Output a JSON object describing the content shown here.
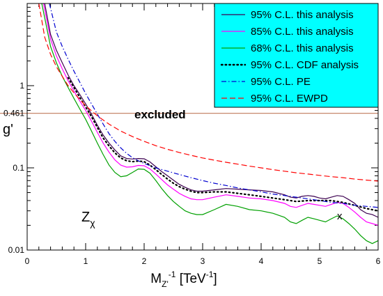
{
  "chart_data": {
    "type": "line",
    "x_scale": "linear",
    "y_scale": "log",
    "xlim": [
      0,
      6
    ],
    "ylim": [
      0.01,
      10
    ],
    "xticks": [
      "0",
      "1",
      "2",
      "3",
      "4",
      "5",
      "6"
    ],
    "yticks": [
      {
        "value": 0.01,
        "label": "0.01"
      },
      {
        "value": 0.1,
        "label": "0.1"
      },
      {
        "value": 0.461,
        "label": "0.461"
      },
      {
        "value": 1,
        "label": "1"
      }
    ],
    "xlabel": {
      "main": "M",
      "sub": "Z'",
      "sup": "-1",
      "unit": " [TeV",
      "unit_sup": "-1",
      "close": "]"
    },
    "ylabel": "g'",
    "annotations": {
      "excluded": "excluded",
      "model_main": "Z",
      "model_sub": "χ",
      "marker": "x"
    },
    "legend_position": "top-right",
    "legend_bg": "#00ffff",
    "reference_line": {
      "y": 0.461,
      "color": "#c0785a"
    },
    "series": [
      {
        "name": "95% C.L. this analysis",
        "color": "#3c0050",
        "dash": "solid",
        "points": [
          [
            0.3,
            10
          ],
          [
            0.4,
            4.2
          ],
          [
            0.5,
            2.7
          ],
          [
            0.6,
            1.9
          ],
          [
            0.7,
            1.35
          ],
          [
            0.8,
            1.0
          ],
          [
            0.9,
            0.78
          ],
          [
            1.0,
            0.6
          ],
          [
            1.1,
            0.45
          ],
          [
            1.2,
            0.33
          ],
          [
            1.3,
            0.25
          ],
          [
            1.4,
            0.2
          ],
          [
            1.5,
            0.165
          ],
          [
            1.6,
            0.14
          ],
          [
            1.7,
            0.13
          ],
          [
            1.8,
            0.128
          ],
          [
            1.9,
            0.13
          ],
          [
            2.0,
            0.129
          ],
          [
            2.1,
            0.118
          ],
          [
            2.2,
            0.103
          ],
          [
            2.3,
            0.09
          ],
          [
            2.4,
            0.08
          ],
          [
            2.5,
            0.071
          ],
          [
            2.6,
            0.063
          ],
          [
            2.7,
            0.058
          ],
          [
            2.8,
            0.054
          ],
          [
            2.9,
            0.052
          ],
          [
            3.0,
            0.052
          ],
          [
            3.2,
            0.054
          ],
          [
            3.4,
            0.056
          ],
          [
            3.6,
            0.055
          ],
          [
            3.8,
            0.054
          ],
          [
            4.0,
            0.053
          ],
          [
            4.2,
            0.051
          ],
          [
            4.4,
            0.047
          ],
          [
            4.5,
            0.044
          ],
          [
            4.6,
            0.043
          ],
          [
            4.7,
            0.045
          ],
          [
            4.8,
            0.046
          ],
          [
            4.9,
            0.045
          ],
          [
            5.0,
            0.043
          ],
          [
            5.1,
            0.042
          ],
          [
            5.2,
            0.044
          ],
          [
            5.3,
            0.046
          ],
          [
            5.4,
            0.045
          ],
          [
            5.5,
            0.041
          ],
          [
            5.6,
            0.037
          ],
          [
            5.7,
            0.031
          ],
          [
            5.8,
            0.028
          ],
          [
            5.9,
            0.027
          ],
          [
            6.0,
            0.025
          ]
        ]
      },
      {
        "name": "85% C.L. this analysis",
        "color": "#ff00ff",
        "dash": "solid",
        "points": [
          [
            0.28,
            10
          ],
          [
            0.4,
            3.7
          ],
          [
            0.5,
            2.3
          ],
          [
            0.6,
            1.6
          ],
          [
            0.7,
            1.15
          ],
          [
            0.8,
            0.86
          ],
          [
            0.9,
            0.65
          ],
          [
            1.0,
            0.5
          ],
          [
            1.1,
            0.37
          ],
          [
            1.2,
            0.27
          ],
          [
            1.3,
            0.2
          ],
          [
            1.4,
            0.155
          ],
          [
            1.5,
            0.125
          ],
          [
            1.6,
            0.108
          ],
          [
            1.7,
            0.102
          ],
          [
            1.8,
            0.103
          ],
          [
            1.9,
            0.107
          ],
          [
            2.0,
            0.106
          ],
          [
            2.1,
            0.097
          ],
          [
            2.2,
            0.084
          ],
          [
            2.3,
            0.072
          ],
          [
            2.4,
            0.062
          ],
          [
            2.5,
            0.055
          ],
          [
            2.6,
            0.049
          ],
          [
            2.7,
            0.045
          ],
          [
            2.8,
            0.042
          ],
          [
            2.9,
            0.041
          ],
          [
            3.0,
            0.041
          ],
          [
            3.2,
            0.044
          ],
          [
            3.4,
            0.047
          ],
          [
            3.6,
            0.045
          ],
          [
            3.8,
            0.043
          ],
          [
            4.0,
            0.042
          ],
          [
            4.2,
            0.04
          ],
          [
            4.4,
            0.037
          ],
          [
            4.5,
            0.034
          ],
          [
            4.6,
            0.033
          ],
          [
            4.7,
            0.035
          ],
          [
            4.8,
            0.037
          ],
          [
            4.9,
            0.036
          ],
          [
            5.0,
            0.035
          ],
          [
            5.1,
            0.034
          ],
          [
            5.2,
            0.036
          ],
          [
            5.3,
            0.038
          ],
          [
            5.4,
            0.037
          ],
          [
            5.5,
            0.033
          ],
          [
            5.6,
            0.029
          ],
          [
            5.7,
            0.025
          ],
          [
            5.8,
            0.022
          ],
          [
            5.9,
            0.021
          ],
          [
            6.0,
            0.02
          ]
        ]
      },
      {
        "name": "68% C.L. this analysis",
        "color": "#00a000",
        "dash": "solid",
        "points": [
          [
            0.25,
            10
          ],
          [
            0.4,
            3.0
          ],
          [
            0.5,
            1.9
          ],
          [
            0.6,
            1.3
          ],
          [
            0.7,
            0.95
          ],
          [
            0.8,
            0.7
          ],
          [
            0.9,
            0.52
          ],
          [
            1.0,
            0.39
          ],
          [
            1.1,
            0.28
          ],
          [
            1.2,
            0.2
          ],
          [
            1.3,
            0.145
          ],
          [
            1.4,
            0.108
          ],
          [
            1.5,
            0.088
          ],
          [
            1.6,
            0.078
          ],
          [
            1.7,
            0.08
          ],
          [
            1.8,
            0.088
          ],
          [
            1.9,
            0.097
          ],
          [
            2.0,
            0.096
          ],
          [
            2.1,
            0.086
          ],
          [
            2.2,
            0.07
          ],
          [
            2.3,
            0.056
          ],
          [
            2.4,
            0.046
          ],
          [
            2.5,
            0.039
          ],
          [
            2.6,
            0.034
          ],
          [
            2.7,
            0.03
          ],
          [
            2.8,
            0.028
          ],
          [
            2.9,
            0.027
          ],
          [
            3.0,
            0.027
          ],
          [
            3.2,
            0.031
          ],
          [
            3.4,
            0.036
          ],
          [
            3.6,
            0.034
          ],
          [
            3.8,
            0.031
          ],
          [
            4.0,
            0.03
          ],
          [
            4.2,
            0.028
          ],
          [
            4.4,
            0.025
          ],
          [
            4.5,
            0.022
          ],
          [
            4.6,
            0.021
          ],
          [
            4.7,
            0.023
          ],
          [
            4.8,
            0.025
          ],
          [
            4.9,
            0.024
          ],
          [
            5.0,
            0.023
          ],
          [
            5.1,
            0.022
          ],
          [
            5.2,
            0.024
          ],
          [
            5.3,
            0.026
          ],
          [
            5.4,
            0.024
          ],
          [
            5.5,
            0.021
          ],
          [
            5.6,
            0.018
          ],
          [
            5.7,
            0.015
          ],
          [
            5.8,
            0.013
          ],
          [
            5.9,
            0.012
          ],
          [
            6.0,
            0.013
          ]
        ]
      },
      {
        "name": "95% C.L. CDF analysis",
        "color": "#000000",
        "dash": "dotted",
        "points": [
          [
            0.7,
            1.25
          ],
          [
            0.8,
            0.95
          ],
          [
            0.9,
            0.72
          ],
          [
            1.0,
            0.55
          ],
          [
            1.1,
            0.42
          ],
          [
            1.2,
            0.31
          ],
          [
            1.3,
            0.23
          ],
          [
            1.4,
            0.185
          ],
          [
            1.5,
            0.152
          ],
          [
            1.6,
            0.132
          ],
          [
            1.7,
            0.122
          ],
          [
            1.8,
            0.119
          ],
          [
            1.9,
            0.121
          ],
          [
            2.0,
            0.119
          ],
          [
            2.1,
            0.108
          ],
          [
            2.2,
            0.095
          ],
          [
            2.3,
            0.083
          ],
          [
            2.4,
            0.073
          ],
          [
            2.5,
            0.065
          ],
          [
            2.6,
            0.059
          ],
          [
            2.7,
            0.055
          ],
          [
            2.8,
            0.052
          ],
          [
            2.9,
            0.05
          ],
          [
            3.0,
            0.05
          ],
          [
            3.2,
            0.051
          ],
          [
            3.4,
            0.051
          ],
          [
            3.6,
            0.049
          ],
          [
            3.8,
            0.047
          ],
          [
            4.0,
            0.045
          ],
          [
            4.2,
            0.043
          ],
          [
            4.4,
            0.041
          ],
          [
            4.6,
            0.039
          ],
          [
            4.8,
            0.04
          ],
          [
            5.0,
            0.04
          ],
          [
            5.2,
            0.04
          ],
          [
            5.4,
            0.038
          ],
          [
            5.6,
            0.035
          ],
          [
            5.8,
            0.032
          ],
          [
            6.0,
            0.03
          ]
        ]
      },
      {
        "name": "95% C.L. PE",
        "color": "#0000d0",
        "dash": "dashdot",
        "points": [
          [
            0.38,
            10
          ],
          [
            0.5,
            4.5
          ],
          [
            0.6,
            3.0
          ],
          [
            0.7,
            2.1
          ],
          [
            0.8,
            1.5
          ],
          [
            0.9,
            1.1
          ],
          [
            1.0,
            0.8
          ],
          [
            1.1,
            0.6
          ],
          [
            1.2,
            0.45
          ],
          [
            1.3,
            0.34
          ],
          [
            1.4,
            0.26
          ],
          [
            1.5,
            0.21
          ],
          [
            1.6,
            0.175
          ],
          [
            1.7,
            0.15
          ],
          [
            1.8,
            0.133
          ],
          [
            1.9,
            0.122
          ],
          [
            2.0,
            0.113
          ],
          [
            2.2,
            0.1
          ],
          [
            2.4,
            0.091
          ],
          [
            2.6,
            0.083
          ],
          [
            2.8,
            0.076
          ],
          [
            3.0,
            0.07
          ],
          [
            3.2,
            0.065
          ],
          [
            3.4,
            0.061
          ],
          [
            3.6,
            0.057
          ],
          [
            3.8,
            0.054
          ],
          [
            4.0,
            0.051
          ],
          [
            4.2,
            0.048
          ],
          [
            4.4,
            0.046
          ],
          [
            4.6,
            0.044
          ],
          [
            4.8,
            0.042
          ],
          [
            5.0,
            0.04
          ],
          [
            5.2,
            0.038
          ],
          [
            5.4,
            0.037
          ],
          [
            5.6,
            0.035
          ],
          [
            5.8,
            0.034
          ],
          [
            6.0,
            0.033
          ]
        ]
      },
      {
        "name": "95% C.L. EWPD",
        "color": "#ff0000",
        "dash": "dashed",
        "points": [
          [
            0.2,
            10
          ],
          [
            0.3,
            3.9
          ],
          [
            0.4,
            2.4
          ],
          [
            0.5,
            1.7
          ],
          [
            0.6,
            1.3
          ],
          [
            0.7,
            1.0
          ],
          [
            0.8,
            0.82
          ],
          [
            0.9,
            0.68
          ],
          [
            1.0,
            0.57
          ],
          [
            1.2,
            0.43
          ],
          [
            1.4,
            0.34
          ],
          [
            1.6,
            0.28
          ],
          [
            1.8,
            0.24
          ],
          [
            2.0,
            0.21
          ],
          [
            2.2,
            0.186
          ],
          [
            2.4,
            0.168
          ],
          [
            2.6,
            0.154
          ],
          [
            2.8,
            0.142
          ],
          [
            3.0,
            0.132
          ],
          [
            3.2,
            0.124
          ],
          [
            3.4,
            0.117
          ],
          [
            3.6,
            0.111
          ],
          [
            3.8,
            0.105
          ],
          [
            4.0,
            0.1
          ],
          [
            4.2,
            0.095
          ],
          [
            4.4,
            0.091
          ],
          [
            4.6,
            0.087
          ],
          [
            4.8,
            0.084
          ],
          [
            5.0,
            0.081
          ],
          [
            5.2,
            0.078
          ],
          [
            5.4,
            0.076
          ],
          [
            5.6,
            0.073
          ],
          [
            5.8,
            0.071
          ],
          [
            6.0,
            0.069
          ]
        ]
      }
    ]
  }
}
